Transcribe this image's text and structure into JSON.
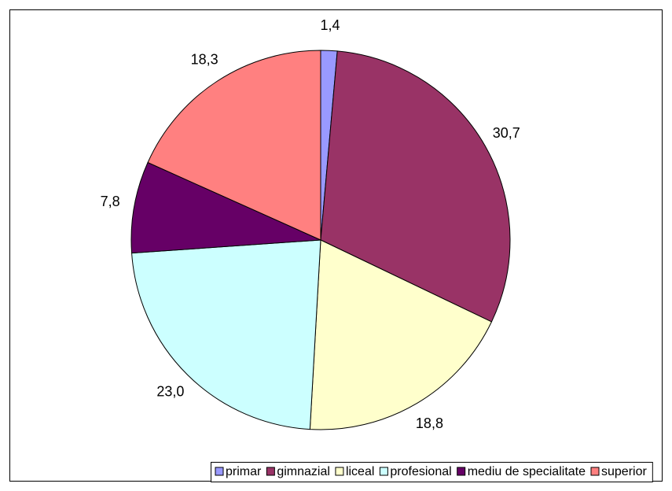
{
  "chart_data": {
    "type": "pie",
    "categories": [
      "primar",
      "gimnazial",
      "liceal",
      "profesional",
      "mediu de specialitate",
      "superior"
    ],
    "values": [
      1.4,
      30.7,
      18.8,
      23.0,
      7.8,
      18.3
    ],
    "value_labels": [
      "1,4",
      "30,7",
      "18,8",
      "23,0",
      "7,8",
      "18,3"
    ],
    "colors": [
      "#9999FF",
      "#993366",
      "#FFFFCC",
      "#CCFFFF",
      "#660066",
      "#FF8080"
    ],
    "legend": "bottom"
  }
}
